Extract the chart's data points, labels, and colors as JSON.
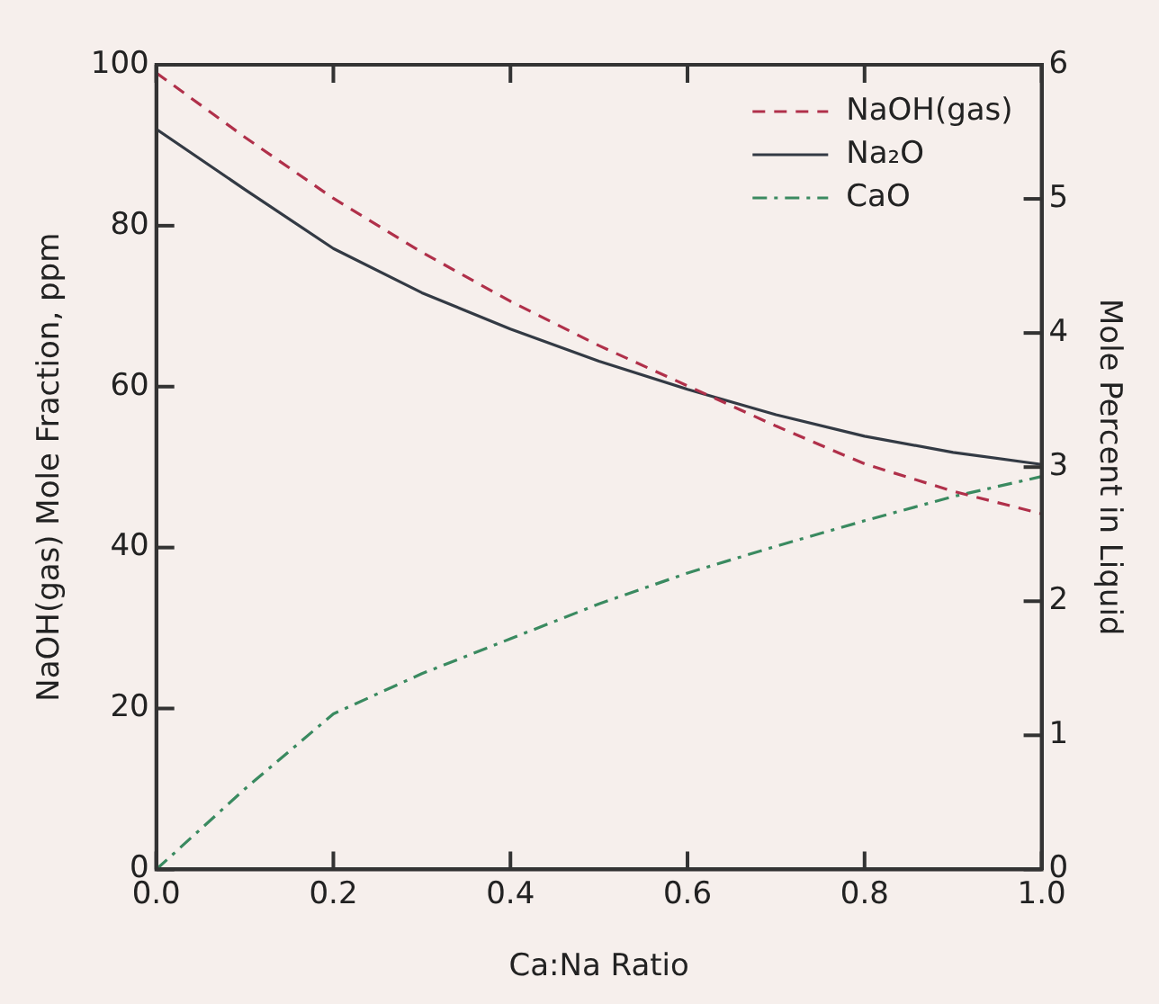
{
  "chart_data": {
    "type": "line",
    "xlabel": "Ca:Na Ratio",
    "ylabel": "NaOH(gas) Mole Fraction, ppm",
    "y2label": "Mole Percent in Liquid",
    "x": [
      0,
      0.1,
      0.2,
      0.3,
      0.4,
      0.5,
      0.6,
      0.7,
      0.8,
      0.9,
      1.0
    ],
    "series": [
      {
        "name": "NaOH(gas)",
        "color": "#b0304a",
        "line_style": "dashed",
        "values": [
          99,
          91,
          83.4,
          76.7,
          70.6,
          65.1,
          60.1,
          55.1,
          50.4,
          47,
          44.2
        ]
      },
      {
        "name": "Na₂O",
        "color": "#333a44",
        "line_style": "solid",
        "axis": "y2",
        "values": [
          5.52,
          5.07,
          4.63,
          4.3,
          4.03,
          3.79,
          3.58,
          3.39,
          3.23,
          3.11,
          3.02
        ]
      },
      {
        "name": "CaO",
        "color": "#3a8a60",
        "line_style": "dashdot",
        "axis": "y2",
        "values": [
          0,
          0.6,
          1.16,
          1.46,
          1.72,
          1.98,
          2.21,
          2.41,
          2.6,
          2.78,
          2.93
        ]
      }
    ],
    "xlim": [
      0,
      1
    ],
    "xticks": [
      {
        "value": 0,
        "label": "0.0"
      },
      {
        "value": 0.2,
        "label": "0.2"
      },
      {
        "value": 0.4,
        "label": "0.4"
      },
      {
        "value": 0.6,
        "label": "0.6"
      },
      {
        "value": 0.8,
        "label": "0.8"
      },
      {
        "value": 1,
        "label": "1.0"
      }
    ],
    "ylim": [
      0,
      100
    ],
    "yticks": [
      0,
      20,
      40,
      60,
      80,
      100
    ],
    "y2lim": [
      0,
      6
    ],
    "y2ticks": [
      0,
      1,
      2,
      3,
      4,
      5,
      6
    ],
    "grid": false,
    "legend": "top right",
    "marker": "none"
  }
}
